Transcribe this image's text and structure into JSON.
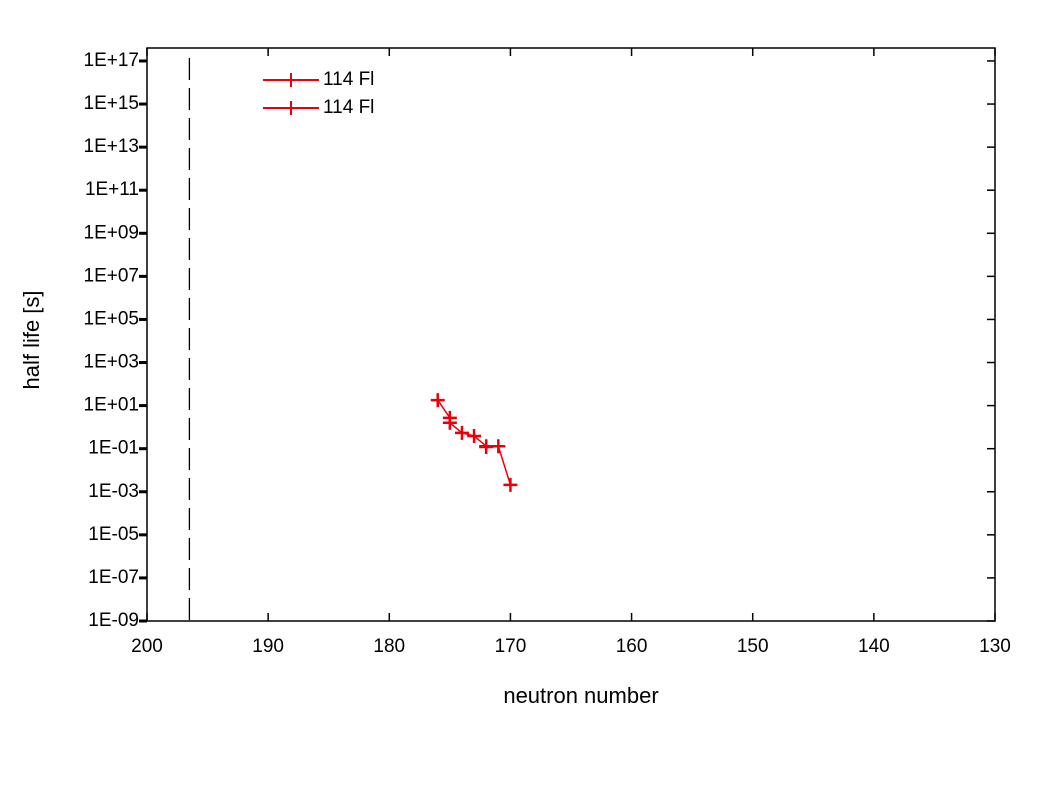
{
  "chart_data": {
    "type": "line",
    "x_label": "neutron number",
    "y_label": "half life [s]",
    "xlim": [
      200,
      130
    ],
    "xticks": [
      200,
      190,
      180,
      170,
      160,
      150,
      140,
      130
    ],
    "ylim": [
      1e-09,
      4e+17
    ],
    "log_y": true,
    "yticks": [
      {
        "value": 1e-09,
        "label": "1E-09"
      },
      {
        "value": 1e-07,
        "label": "1E-07"
      },
      {
        "value": 1e-05,
        "label": "1E-05"
      },
      {
        "value": 0.001,
        "label": "1E-03"
      },
      {
        "value": 0.1,
        "label": "1E-01"
      },
      {
        "value": 10.0,
        "label": "1E+01"
      },
      {
        "value": 1000.0,
        "label": "1E+03"
      },
      {
        "value": 100000.0,
        "label": "1E+05"
      },
      {
        "value": 10000000.0,
        "label": "1E+07"
      },
      {
        "value": 1000000000.0,
        "label": "1E+09"
      },
      {
        "value": 100000000000.0,
        "label": "1E+11"
      },
      {
        "value": 10000000000000.0,
        "label": "1E+13"
      },
      {
        "value": 1000000000000000.0,
        "label": "1E+15"
      },
      {
        "value": 1e+17,
        "label": "1E+17"
      }
    ],
    "vertical_line_x": 196.5,
    "legend": "upper left",
    "series": [
      {
        "name": "114 Fl",
        "color": "#e8000b",
        "x": [
          176,
          175,
          175,
          174,
          173,
          172,
          172,
          171,
          170
        ],
        "values": [
          18,
          2.7,
          1.6,
          0.54,
          0.39,
          0.13,
          0.12,
          0.13,
          0.0021
        ]
      },
      {
        "name": "114 Fl",
        "color": "#e8000b",
        "x": [],
        "values": []
      }
    ]
  }
}
